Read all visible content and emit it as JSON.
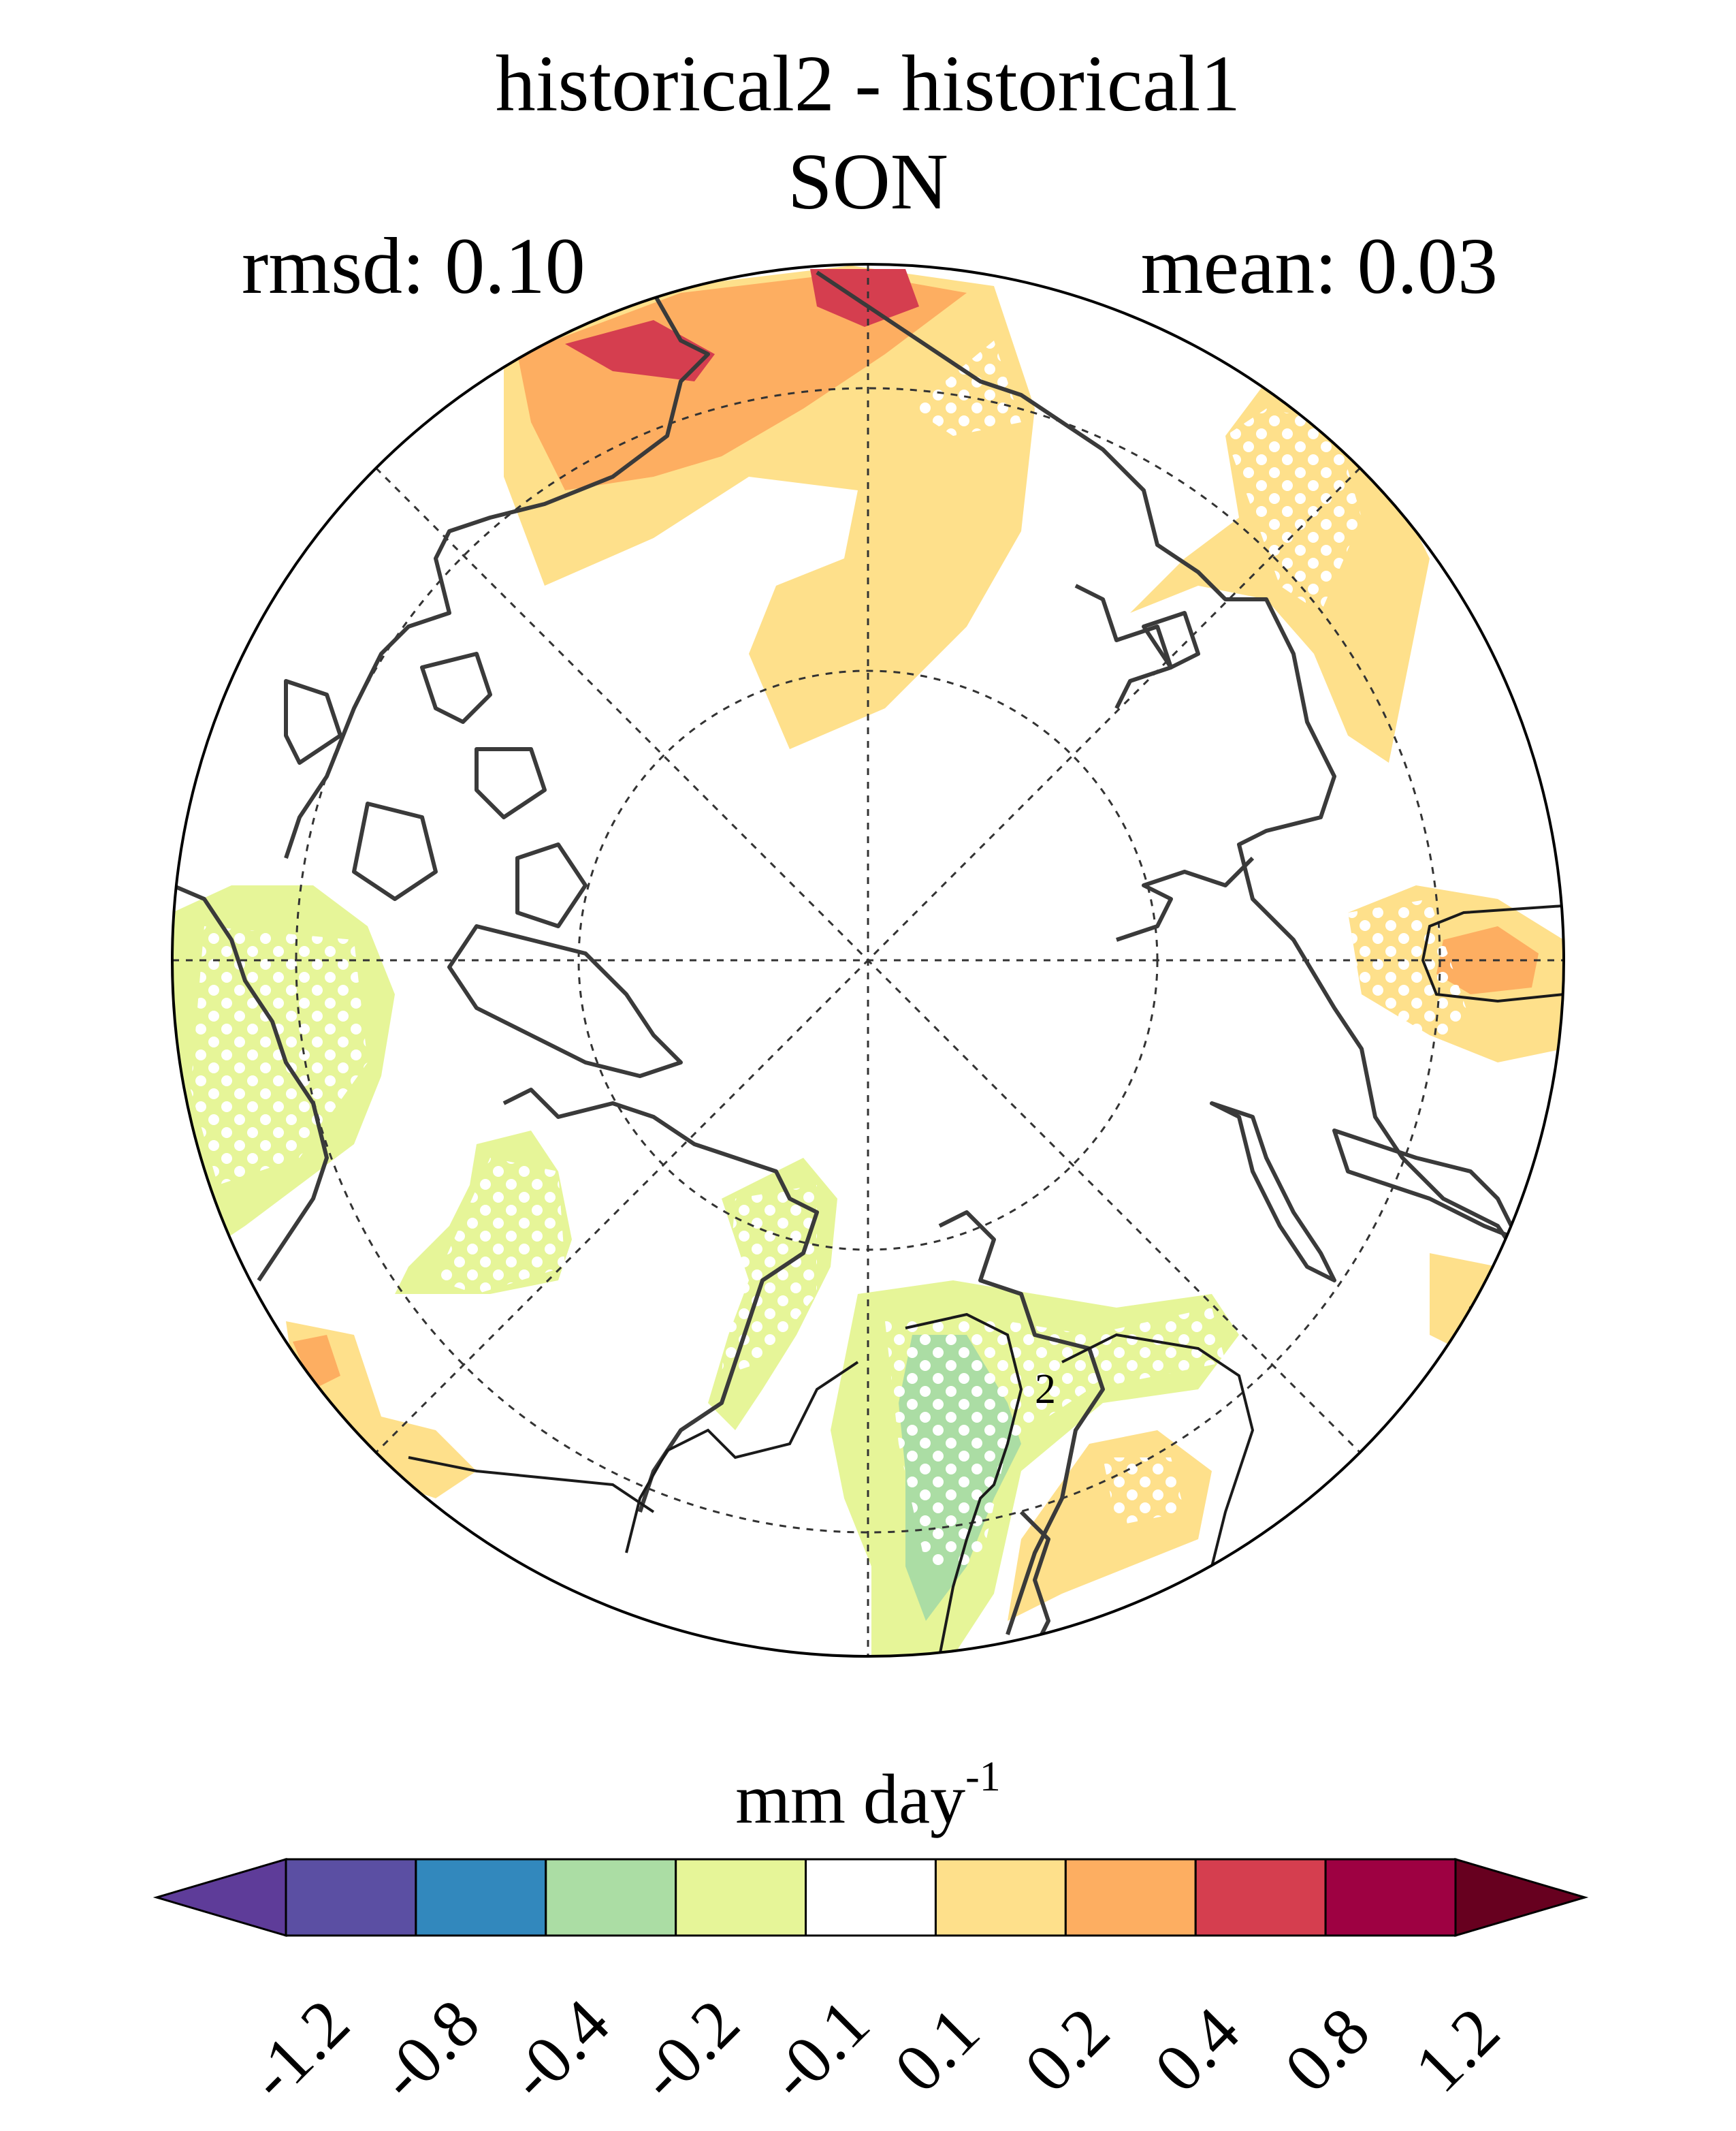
{
  "title": "historical2 - historical1",
  "subtitle": "SON",
  "stats": {
    "rmsd_label": "rmsd: 0.10",
    "mean_label": "mean: 0.03"
  },
  "map": {
    "projection": "north polar stereographic",
    "contour_label": "2",
    "stippling": "white dots"
  },
  "colorbar": {
    "units_base": "mm day",
    "units_exp": "-1",
    "ticks": [
      "-1.2",
      "-0.8",
      "-0.4",
      "-0.2",
      "-0.1",
      "0.1",
      "0.2",
      "0.4",
      "0.8",
      "1.2"
    ],
    "colors": [
      "#5e3c99",
      "#5b4fa3",
      "#3288bd",
      "#abdda4",
      "#e6f598",
      "#ffffff",
      "#fee08b",
      "#fdae61",
      "#d53e4f",
      "#9e0142",
      "#67001f"
    ],
    "extend": "both"
  },
  "colors": {
    "neg_weak": "#e6f598",
    "neg_mid": "#abdda4",
    "pos_weak": "#fee08b",
    "pos_mid": "#fdae61",
    "pos_strong": "#d53e4f",
    "coast": "#333333"
  }
}
